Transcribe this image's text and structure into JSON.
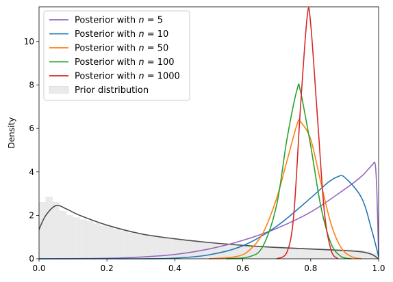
{
  "chart_data": {
    "type": "line",
    "title": "",
    "xlabel": "",
    "ylabel": "Density",
    "xlim": [
      0,
      1
    ],
    "ylim": [
      0,
      11.6
    ],
    "x_ticks": [
      "0.0",
      "0.2",
      "0.4",
      "0.6",
      "0.8",
      "1.0"
    ],
    "y_ticks": [
      "0",
      "2",
      "4",
      "6",
      "8",
      "10"
    ],
    "x_tick_values": [
      0,
      0.2,
      0.4,
      0.6,
      0.8,
      1.0
    ],
    "y_tick_values": [
      0,
      2,
      4,
      6,
      8,
      10
    ],
    "grid": false,
    "legend_position": "top-left",
    "series": [
      {
        "name": "Posterior with n = 5",
        "legend_prefix": "Posterior with ",
        "legend_var": "n",
        "legend_suffix": " = 5",
        "color": "#9467bd",
        "points": [
          [
            0,
            0
          ],
          [
            0.2,
            0.02
          ],
          [
            0.3,
            0.08
          ],
          [
            0.4,
            0.2
          ],
          [
            0.5,
            0.45
          ],
          [
            0.6,
            0.85
          ],
          [
            0.7,
            1.4
          ],
          [
            0.8,
            2.15
          ],
          [
            0.9,
            3.2
          ],
          [
            0.95,
            3.8
          ],
          [
            0.98,
            4.3
          ],
          [
            0.99,
            4.35
          ],
          [
            0.995,
            3.0
          ],
          [
            1.0,
            0.1
          ]
        ]
      },
      {
        "name": "Posterior with n = 10",
        "legend_prefix": "Posterior with ",
        "legend_var": "n",
        "legend_suffix": " = 10",
        "color": "#1f77b4",
        "points": [
          [
            0,
            0
          ],
          [
            0.3,
            0.0
          ],
          [
            0.4,
            0.03
          ],
          [
            0.5,
            0.18
          ],
          [
            0.6,
            0.6
          ],
          [
            0.7,
            1.5
          ],
          [
            0.8,
            2.8
          ],
          [
            0.85,
            3.5
          ],
          [
            0.88,
            3.78
          ],
          [
            0.9,
            3.75
          ],
          [
            0.95,
            2.8
          ],
          [
            0.98,
            1.3
          ],
          [
            1.0,
            0.1
          ]
        ]
      },
      {
        "name": "Posterior with n = 50",
        "legend_prefix": "Posterior with ",
        "legend_var": "n",
        "legend_suffix": " = 50",
        "color": "#ff7f0e",
        "points": [
          [
            0.5,
            0.0
          ],
          [
            0.58,
            0.1
          ],
          [
            0.62,
            0.4
          ],
          [
            0.66,
            1.2
          ],
          [
            0.7,
            2.8
          ],
          [
            0.73,
            4.5
          ],
          [
            0.76,
            6.2
          ],
          [
            0.77,
            6.3
          ],
          [
            0.8,
            5.5
          ],
          [
            0.83,
            3.5
          ],
          [
            0.86,
            1.6
          ],
          [
            0.89,
            0.5
          ],
          [
            0.92,
            0.1
          ],
          [
            0.95,
            0.0
          ]
        ]
      },
      {
        "name": "Posterior with n = 100",
        "legend_prefix": "Posterior with ",
        "legend_var": "n",
        "legend_suffix": " = 100",
        "color": "#2ca02c",
        "points": [
          [
            0.55,
            0.0
          ],
          [
            0.62,
            0.1
          ],
          [
            0.66,
            0.6
          ],
          [
            0.7,
            2.5
          ],
          [
            0.73,
            5.5
          ],
          [
            0.76,
            7.8
          ],
          [
            0.77,
            7.7
          ],
          [
            0.8,
            5.2
          ],
          [
            0.83,
            2.4
          ],
          [
            0.86,
            0.7
          ],
          [
            0.89,
            0.1
          ],
          [
            0.92,
            0.0
          ]
        ]
      },
      {
        "name": "Posterior with n = 1000",
        "legend_prefix": "Posterior with ",
        "legend_var": "n",
        "legend_suffix": " = 1000",
        "color": "#d62728",
        "points": [
          [
            0.7,
            0.0
          ],
          [
            0.73,
            0.3
          ],
          [
            0.75,
            2.0
          ],
          [
            0.77,
            7.0
          ],
          [
            0.79,
            11.2
          ],
          [
            0.8,
            10.8
          ],
          [
            0.82,
            6.5
          ],
          [
            0.84,
            2.2
          ],
          [
            0.86,
            0.4
          ],
          [
            0.88,
            0.0
          ]
        ]
      }
    ],
    "prior_density": {
      "color": "#4d4d4d",
      "points": [
        [
          0,
          1.35
        ],
        [
          0.02,
          2.0
        ],
        [
          0.05,
          2.45
        ],
        [
          0.08,
          2.3
        ],
        [
          0.12,
          2.0
        ],
        [
          0.2,
          1.55
        ],
        [
          0.3,
          1.15
        ],
        [
          0.4,
          0.92
        ],
        [
          0.5,
          0.75
        ],
        [
          0.6,
          0.62
        ],
        [
          0.7,
          0.52
        ],
        [
          0.8,
          0.45
        ],
        [
          0.9,
          0.38
        ],
        [
          0.95,
          0.32
        ],
        [
          0.98,
          0.2
        ],
        [
          1.0,
          0.0
        ]
      ]
    },
    "prior_histogram": {
      "name": "Prior distribution",
      "color": "#d9d9d9",
      "bin_width": 0.02,
      "values": [
        2.6,
        2.85,
        2.6,
        2.2,
        2.0,
        1.9,
        1.8,
        1.72,
        1.62,
        1.52,
        1.45,
        1.35,
        1.28,
        1.2,
        1.12,
        1.08,
        1.02,
        0.98,
        0.95,
        0.9,
        0.88,
        0.85,
        0.82,
        0.8,
        0.78,
        0.75,
        0.72,
        0.7,
        0.68,
        0.66,
        0.64,
        0.62,
        0.6,
        0.58,
        0.56,
        0.55,
        0.54,
        0.52,
        0.5,
        0.5,
        0.48,
        0.47,
        0.46,
        0.45,
        0.44,
        0.42,
        0.4,
        0.38,
        0.33,
        0.25
      ]
    }
  }
}
